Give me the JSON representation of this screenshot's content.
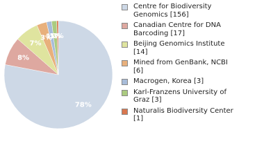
{
  "chart_data": {
    "type": "pie",
    "categories": [
      "Centre for Biodiversity Genomics [156]",
      "Canadian Centre for DNA Barcoding [17]",
      "Beijing Genomics Institute [14]",
      "Mined from GenBank, NCBI [6]",
      "Macrogen, Korea [3]",
      "Karl-Franzens University of Graz [3]",
      "Naturalis Biodiversity Center [1]"
    ],
    "values": [
      156,
      17,
      14,
      6,
      3,
      3,
      1
    ],
    "value_labels": [
      "78%",
      "8%",
      "7%",
      "3%",
      "1%",
      "1%",
      "0%"
    ],
    "colors": [
      "#cdd8e6",
      "#dea8a0",
      "#dfe49f",
      "#e8b07c",
      "#a8bcd9",
      "#abcb80",
      "#d9774f"
    ]
  }
}
